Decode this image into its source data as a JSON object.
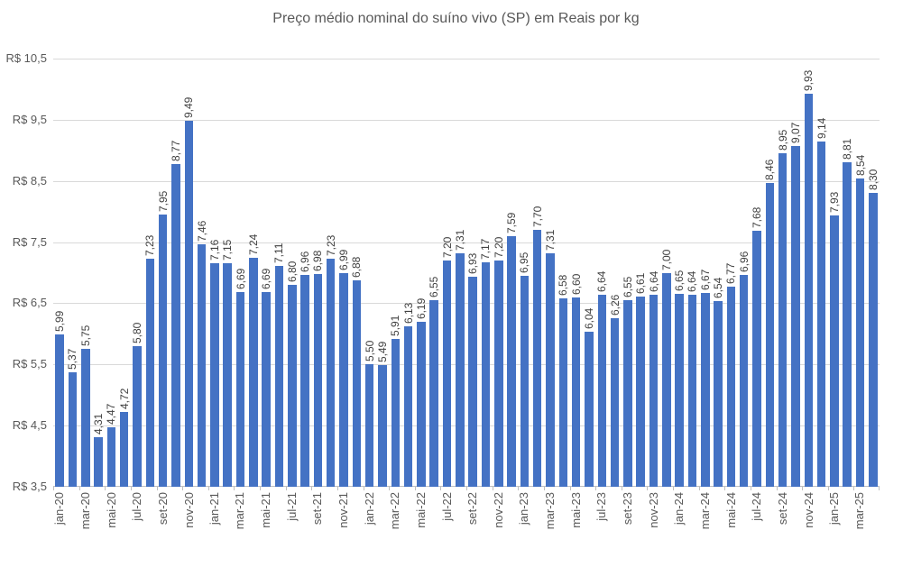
{
  "chart_data": {
    "type": "bar",
    "title": "Preço médio nominal do suíno vivo (SP) em Reais por kg",
    "categories": [
      "jan-20",
      "fev-20",
      "mar-20",
      "abr-20",
      "mai-20",
      "jun-20",
      "jul-20",
      "ago-20",
      "set-20",
      "out-20",
      "nov-20",
      "dez-20",
      "jan-21",
      "fev-21",
      "mar-21",
      "abr-21",
      "mai-21",
      "jun-21",
      "jul-21",
      "ago-21",
      "set-21",
      "out-21",
      "nov-21",
      "dez-21",
      "jan-22",
      "fev-22",
      "mar-22",
      "abr-22",
      "mai-22",
      "jun-22",
      "jul-22",
      "ago-22",
      "set-22",
      "out-22",
      "nov-22",
      "dez-22",
      "jan-23",
      "fev-23",
      "mar-23",
      "abr-23",
      "mai-23",
      "jun-23",
      "jul-23",
      "ago-23",
      "set-23",
      "out-23",
      "nov-23",
      "dez-23",
      "jan-24",
      "fev-24",
      "mar-24",
      "abr-24",
      "mai-24",
      "jun-24",
      "jul-24",
      "ago-24",
      "set-24",
      "out-24",
      "nov-24",
      "dez-24",
      "jan-25",
      "fev-25",
      "mar-25",
      "abr-25"
    ],
    "values": [
      5.99,
      5.37,
      5.75,
      4.31,
      4.47,
      4.72,
      5.8,
      7.23,
      7.95,
      8.77,
      9.49,
      7.46,
      7.16,
      7.15,
      6.69,
      7.24,
      6.69,
      7.11,
      6.8,
      6.96,
      6.98,
      7.23,
      6.99,
      6.88,
      5.5,
      5.49,
      5.91,
      6.13,
      6.19,
      6.55,
      7.2,
      7.31,
      6.93,
      7.17,
      7.2,
      7.59,
      6.95,
      7.7,
      7.31,
      6.58,
      6.6,
      6.04,
      6.64,
      6.26,
      6.55,
      6.61,
      6.64,
      7.0,
      6.65,
      6.64,
      6.67,
      6.54,
      6.77,
      6.96,
      7.68,
      8.46,
      8.95,
      9.07,
      9.93,
      9.14,
      7.93,
      8.81,
      8.54,
      8.3
    ],
    "value_labels": [
      "5,99",
      "5,37",
      "5,75",
      "4,31",
      "4,47",
      "4,72",
      "5,80",
      "7,23",
      "7,95",
      "8,77",
      "9,49",
      "7,46",
      "7,16",
      "7,15",
      "6,69",
      "7,24",
      "6,69",
      "7,11",
      "6,80",
      "6,96",
      "6,98",
      "7,23",
      "6,99",
      "6,88",
      "5,50",
      "5,49",
      "5,91",
      "6,13",
      "6,19",
      "6,55",
      "7,20",
      "7,31",
      "6,93",
      "7,17",
      "7,20",
      "7,59",
      "6,95",
      "7,70",
      "7,31",
      "6,58",
      "6,60",
      "6,04",
      "6,64",
      "6,26",
      "6,55",
      "6,61",
      "6,64",
      "7,00",
      "6,65",
      "6,64",
      "6,67",
      "6,54",
      "6,77",
      "6,96",
      "7,68",
      "8,46",
      "8,95",
      "9,07",
      "9,93",
      "9,14",
      "7,93",
      "8,81",
      "8,54",
      "8,30"
    ],
    "x_tick_every": 2,
    "y_ticks": [
      {
        "value": 3.5,
        "label": "R$ 3,5"
      },
      {
        "value": 4.5,
        "label": "R$ 4,5"
      },
      {
        "value": 5.5,
        "label": "R$ 5,5"
      },
      {
        "value": 6.5,
        "label": "R$ 6,5"
      },
      {
        "value": 7.5,
        "label": "R$ 7,5"
      },
      {
        "value": 8.5,
        "label": "R$ 8,5"
      },
      {
        "value": 9.5,
        "label": "R$ 9,5"
      },
      {
        "value": 10.5,
        "label": "R$ 10,5"
      }
    ],
    "ylim": [
      3.5,
      10.5
    ],
    "grid": true,
    "legend": false,
    "bar_color": "#4472C4",
    "grid_color": "#d9d9d9",
    "axis_color": "#bfbfbf",
    "title_color": "#595959",
    "axis_text_color": "#595959",
    "value_text_color": "#404040"
  }
}
